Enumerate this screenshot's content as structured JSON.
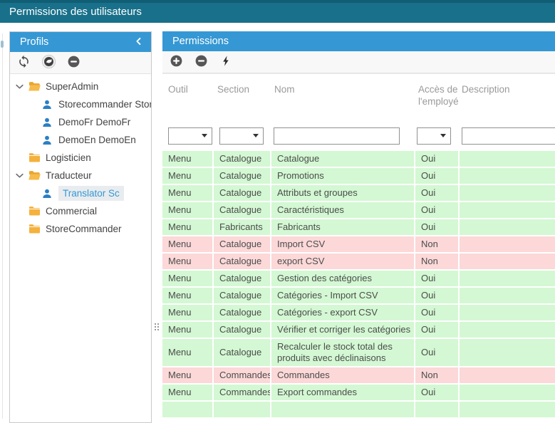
{
  "colors": {
    "topbar": "#19708a",
    "panel_header_blue": "#3598d4",
    "row_allowed_green": "#d3f8d3",
    "row_denied_pink": "#fcd8d8",
    "selected_item_text": "#3598d4",
    "folder_yellow": "#f4b13d",
    "user_icon_blue": "#2b7fc3"
  },
  "titlebar": {
    "title": "Permissions des utilisateurs"
  },
  "profils": {
    "title": "Profils",
    "collapse_icon": "chevron-left-icon",
    "toolbar": [
      {
        "icon": "refresh-icon"
      },
      {
        "icon": "prestashop-icon"
      },
      {
        "icon": "remove-circle-icon"
      }
    ],
    "tree": [
      {
        "label": "SuperAdmin",
        "icon": "folder-open",
        "chevron": true,
        "level": 0,
        "selected": false
      },
      {
        "label": "Storecommander Stor",
        "icon": "user",
        "chevron": false,
        "level": 1,
        "selected": false
      },
      {
        "label": "DemoFr DemoFr",
        "icon": "user",
        "chevron": false,
        "level": 1,
        "selected": false
      },
      {
        "label": "DemoEn DemoEn",
        "icon": "user",
        "chevron": false,
        "level": 1,
        "selected": false
      },
      {
        "label": "Logisticien",
        "icon": "folder",
        "chevron": false,
        "level": 0,
        "selected": false
      },
      {
        "label": "Traducteur",
        "icon": "folder-open",
        "chevron": true,
        "level": 0,
        "selected": false
      },
      {
        "label": "Translator Sc",
        "icon": "user",
        "chevron": false,
        "level": 1,
        "selected": true
      },
      {
        "label": "Commercial",
        "icon": "folder",
        "chevron": false,
        "level": 0,
        "selected": false
      },
      {
        "label": "StoreCommander",
        "icon": "folder",
        "chevron": false,
        "level": 0,
        "selected": false
      }
    ]
  },
  "permissions": {
    "title": "Permissions",
    "toolbar": [
      {
        "icon": "add-circle-icon"
      },
      {
        "icon": "remove-circle-icon"
      },
      {
        "icon": "lightning-icon"
      }
    ],
    "columns": [
      "Outil",
      "Section",
      "Nom",
      "Accès de l'employé",
      "Description"
    ],
    "filters": {
      "outil": {
        "type": "select",
        "value": ""
      },
      "section": {
        "type": "select",
        "value": ""
      },
      "nom": {
        "type": "text",
        "value": "",
        "placeholder": ""
      },
      "acces": {
        "type": "select",
        "value": ""
      },
      "description": {
        "type": "text",
        "value": "",
        "placeholder": ""
      }
    },
    "rows": [
      {
        "outil": "Menu",
        "section": "Catalogue",
        "nom": "Catalogue",
        "acces": "Oui",
        "description": "",
        "allowed": true
      },
      {
        "outil": "Menu",
        "section": "Catalogue",
        "nom": "Promotions",
        "acces": "Oui",
        "description": "",
        "allowed": true
      },
      {
        "outil": "Menu",
        "section": "Catalogue",
        "nom": "Attributs et groupes",
        "acces": "Oui",
        "description": "",
        "allowed": true
      },
      {
        "outil": "Menu",
        "section": "Catalogue",
        "nom": "Caractéristiques",
        "acces": "Oui",
        "description": "",
        "allowed": true
      },
      {
        "outil": "Menu",
        "section": "Fabricants",
        "nom": "Fabricants",
        "acces": "Oui",
        "description": "",
        "allowed": true
      },
      {
        "outil": "Menu",
        "section": "Catalogue",
        "nom": "Import CSV",
        "acces": "Non",
        "description": "",
        "allowed": false
      },
      {
        "outil": "Menu",
        "section": "Catalogue",
        "nom": "export CSV",
        "acces": "Non",
        "description": "",
        "allowed": false
      },
      {
        "outil": "Menu",
        "section": "Catalogue",
        "nom": "Gestion des catégories",
        "acces": "Oui",
        "description": "",
        "allowed": true
      },
      {
        "outil": "Menu",
        "section": "Catalogue",
        "nom": "Catégories - Import CSV",
        "acces": "Oui",
        "description": "",
        "allowed": true
      },
      {
        "outil": "Menu",
        "section": "Catalogue",
        "nom": "Catégories - export CSV",
        "acces": "Oui",
        "description": "",
        "allowed": true
      },
      {
        "outil": "Menu",
        "section": "Catalogue",
        "nom": "Vérifier et corriger les catégories",
        "acces": "Oui",
        "description": "",
        "allowed": true
      },
      {
        "outil": "Menu",
        "section": "Catalogue",
        "nom": "Recalculer le stock total des produits avec déclinaisons",
        "acces": "Oui",
        "description": "",
        "allowed": true
      },
      {
        "outil": "Menu",
        "section": "Commandes",
        "nom": "Commandes",
        "acces": "Non",
        "description": "",
        "allowed": false
      },
      {
        "outil": "Menu",
        "section": "Commandes",
        "nom": "Export commandes",
        "acces": "Oui",
        "description": "",
        "allowed": true
      },
      {
        "outil": "",
        "section": "",
        "nom": "",
        "acces": "",
        "description": "",
        "allowed": true
      }
    ]
  }
}
